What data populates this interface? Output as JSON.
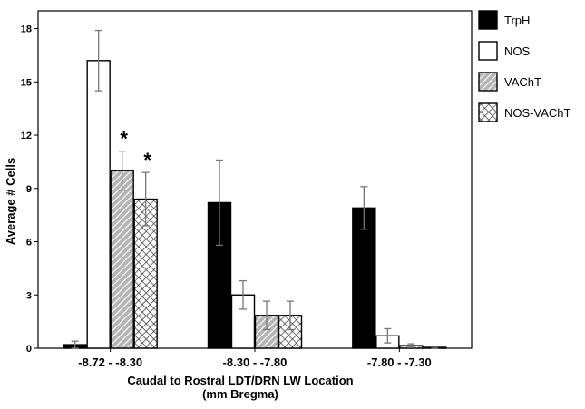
{
  "chart_data": {
    "type": "bar",
    "xlabel": "Caudal to Rostral LDT/DRN LW Location",
    "xlabel_sub": "(mm Bregma)",
    "ylabel": "Average # Cells",
    "ylim": [
      0,
      19
    ],
    "yticks": [
      0,
      3,
      6,
      9,
      12,
      15,
      18
    ],
    "categories": [
      "-8.72 - -8.30",
      "-8.30 - -7.80",
      "-7.80 - -7.30"
    ],
    "series": [
      {
        "name": "TrpH",
        "fill": "solid",
        "color": "#000000",
        "values": [
          0.2,
          8.2,
          7.9
        ],
        "errors": [
          0.2,
          2.4,
          1.2
        ]
      },
      {
        "name": "NOS",
        "fill": "empty",
        "color": "#ffffff",
        "values": [
          16.2,
          3.0,
          0.7
        ],
        "errors": [
          1.7,
          0.8,
          0.4
        ]
      },
      {
        "name": "VAChT",
        "fill": "diagonal",
        "color": "#aaaaaa",
        "values": [
          10.0,
          1.85,
          0.15
        ],
        "errors": [
          1.1,
          0.8,
          0.1
        ]
      },
      {
        "name": "NOS-VAChT",
        "fill": "crosshatch",
        "color": "#cccccc",
        "values": [
          8.4,
          1.85,
          0.05
        ],
        "errors": [
          1.5,
          0.8,
          0.05
        ]
      }
    ],
    "annotations": [
      {
        "text": "*",
        "category": 0,
        "series": 2
      },
      {
        "text": "*",
        "category": 0,
        "series": 3
      }
    ],
    "legend_position": "right",
    "grid": false
  }
}
